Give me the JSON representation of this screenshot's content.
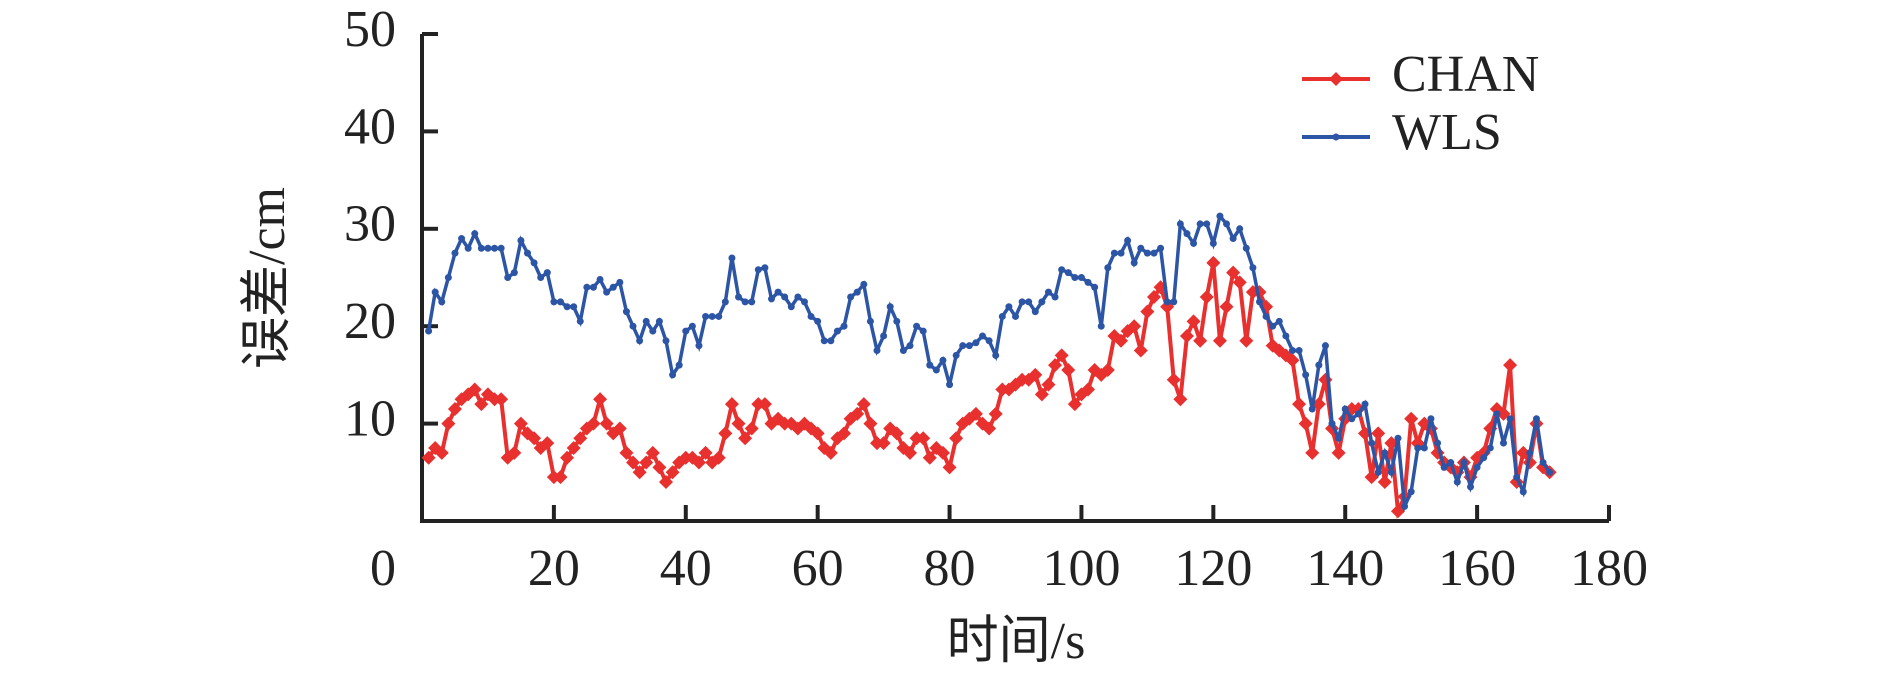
{
  "chart_data": {
    "type": "line",
    "xlabel": "时间/s",
    "ylabel": "误差/cm",
    "x": [
      1,
      2,
      3,
      4,
      5,
      6,
      7,
      8,
      9,
      10,
      11,
      12,
      13,
      14,
      15,
      16,
      17,
      18,
      19,
      20,
      21,
      22,
      23,
      24,
      25,
      26,
      27,
      28,
      29,
      30,
      31,
      32,
      33,
      34,
      35,
      36,
      37,
      38,
      39,
      40,
      41,
      42,
      43,
      44,
      45,
      46,
      47,
      48,
      49,
      50,
      51,
      52,
      53,
      54,
      55,
      56,
      57,
      58,
      59,
      60,
      61,
      62,
      63,
      64,
      65,
      66,
      67,
      68,
      69,
      70,
      71,
      72,
      73,
      74,
      75,
      76,
      77,
      78,
      79,
      80,
      81,
      82,
      83,
      84,
      85,
      86,
      87,
      88,
      89,
      90,
      91,
      92,
      93,
      94,
      95,
      96,
      97,
      98,
      99,
      100,
      101,
      102,
      103,
      104,
      105,
      106,
      107,
      108,
      109,
      110,
      111,
      112,
      113,
      114,
      115,
      116,
      117,
      118,
      119,
      120,
      121,
      122,
      123,
      124,
      125,
      126,
      127,
      128,
      129,
      130,
      131,
      132,
      133,
      134,
      135,
      136,
      137,
      138,
      139,
      140,
      141,
      142,
      143,
      144,
      145,
      146,
      147,
      148,
      149,
      150,
      151,
      152,
      153,
      154,
      155,
      156,
      157,
      158,
      159,
      160,
      161,
      162,
      163,
      164,
      165,
      166,
      167,
      168,
      169,
      170,
      171
    ],
    "series": [
      {
        "name": "CHAN",
        "color": "#e8302f",
        "marker": "diamond",
        "values": [
          6.5,
          7.5,
          7,
          10,
          11.5,
          12.5,
          13,
          13.5,
          12,
          13,
          12.5,
          12.5,
          6.5,
          7,
          10,
          9,
          8.5,
          7.5,
          8,
          4.5,
          4.5,
          6.5,
          7.5,
          8.5,
          9.5,
          10,
          12.5,
          10,
          9,
          9.5,
          7,
          6,
          5,
          6,
          7,
          5.5,
          4,
          5,
          6,
          6.5,
          6.5,
          6,
          7,
          6,
          6.5,
          9,
          12,
          10,
          8.5,
          9.5,
          12,
          12,
          10,
          10.5,
          10,
          10,
          9.5,
          10,
          9.5,
          9,
          7.5,
          7,
          8.5,
          9,
          10.5,
          11,
          12,
          10,
          8,
          8,
          9.5,
          9,
          7.5,
          7,
          8.5,
          8.5,
          6.5,
          7.5,
          7,
          5.5,
          8.5,
          10,
          10.5,
          11,
          10,
          9.5,
          11,
          13.5,
          13.5,
          14,
          14.5,
          14.5,
          15,
          13,
          14,
          16,
          17,
          15.5,
          12,
          13,
          13.5,
          15.5,
          15,
          15.5,
          19,
          18.5,
          19.5,
          20,
          17.5,
          21.5,
          23,
          24,
          22,
          14.5,
          12.5,
          19,
          20.5,
          18.5,
          23,
          26.5,
          18.5,
          22,
          25.5,
          24.5,
          18.5,
          23.5,
          23.5,
          22,
          18,
          17.5,
          17,
          16.5,
          12,
          10,
          7,
          12,
          14.5,
          9.5,
          7,
          10.5,
          11.5,
          11.5,
          9,
          4.5,
          9,
          4,
          8,
          1,
          2.5,
          10.5,
          8,
          10,
          9.5,
          7,
          6,
          5.5,
          5,
          6,
          4.5,
          6.5,
          7,
          9.5,
          11.5,
          11,
          16,
          4,
          7,
          6,
          10,
          5.5,
          5
        ]
      },
      {
        "name": "WLS",
        "color": "#2d55a5",
        "marker": "circle",
        "values": [
          19.5,
          23.5,
          22.5,
          25,
          27.5,
          29,
          28,
          29.5,
          28,
          28,
          28,
          28,
          25,
          25.5,
          28.8,
          27.5,
          26.5,
          25,
          25.5,
          22.5,
          22.5,
          22,
          22,
          20.5,
          24,
          24,
          24.8,
          23.5,
          24,
          24.5,
          21.5,
          20,
          18.5,
          20.5,
          19.5,
          20.5,
          18.5,
          15,
          16,
          19.5,
          20,
          18,
          21,
          21,
          21,
          22.5,
          27,
          23,
          22.5,
          22.5,
          25.8,
          26,
          22.8,
          23.5,
          23,
          22,
          23,
          22.5,
          21,
          20.5,
          18.5,
          18.5,
          19.5,
          20,
          23,
          23.5,
          24.3,
          20.5,
          17.5,
          19,
          22,
          20.5,
          17.5,
          18,
          20,
          19.5,
          16,
          15.5,
          16.5,
          14,
          17,
          18,
          18,
          18.3,
          19,
          18.5,
          17,
          21,
          22,
          21,
          22.5,
          22.5,
          21.5,
          22.5,
          23.5,
          23,
          25.8,
          25.5,
          25,
          25,
          24.5,
          24,
          20,
          26,
          27.5,
          27.5,
          28.8,
          26.5,
          28,
          27.5,
          27.5,
          28,
          22.5,
          22.5,
          30.5,
          29.5,
          28.5,
          30.5,
          30.5,
          28.5,
          31.3,
          30.5,
          29,
          30,
          28,
          26,
          22.5,
          21,
          20,
          20.5,
          19,
          17.5,
          17.5,
          15,
          11.5,
          16,
          18,
          10,
          8.5,
          11.5,
          10.5,
          11,
          12,
          8,
          5,
          7,
          5,
          8.5,
          1.5,
          3,
          7.5,
          7.5,
          10.5,
          8,
          5.5,
          6,
          4,
          6,
          3.5,
          5.5,
          6.5,
          7.5,
          11,
          8,
          10.5,
          4.5,
          3,
          7,
          10.5,
          6,
          5
        ]
      }
    ],
    "xlim": [
      0,
      180
    ],
    "xticks": [
      0,
      20,
      40,
      60,
      80,
      100,
      120,
      140,
      160,
      180
    ],
    "ylim": [
      0,
      50
    ],
    "yticks": [
      10,
      20,
      30,
      40,
      50
    ],
    "grid": false,
    "legend": "upper right"
  }
}
